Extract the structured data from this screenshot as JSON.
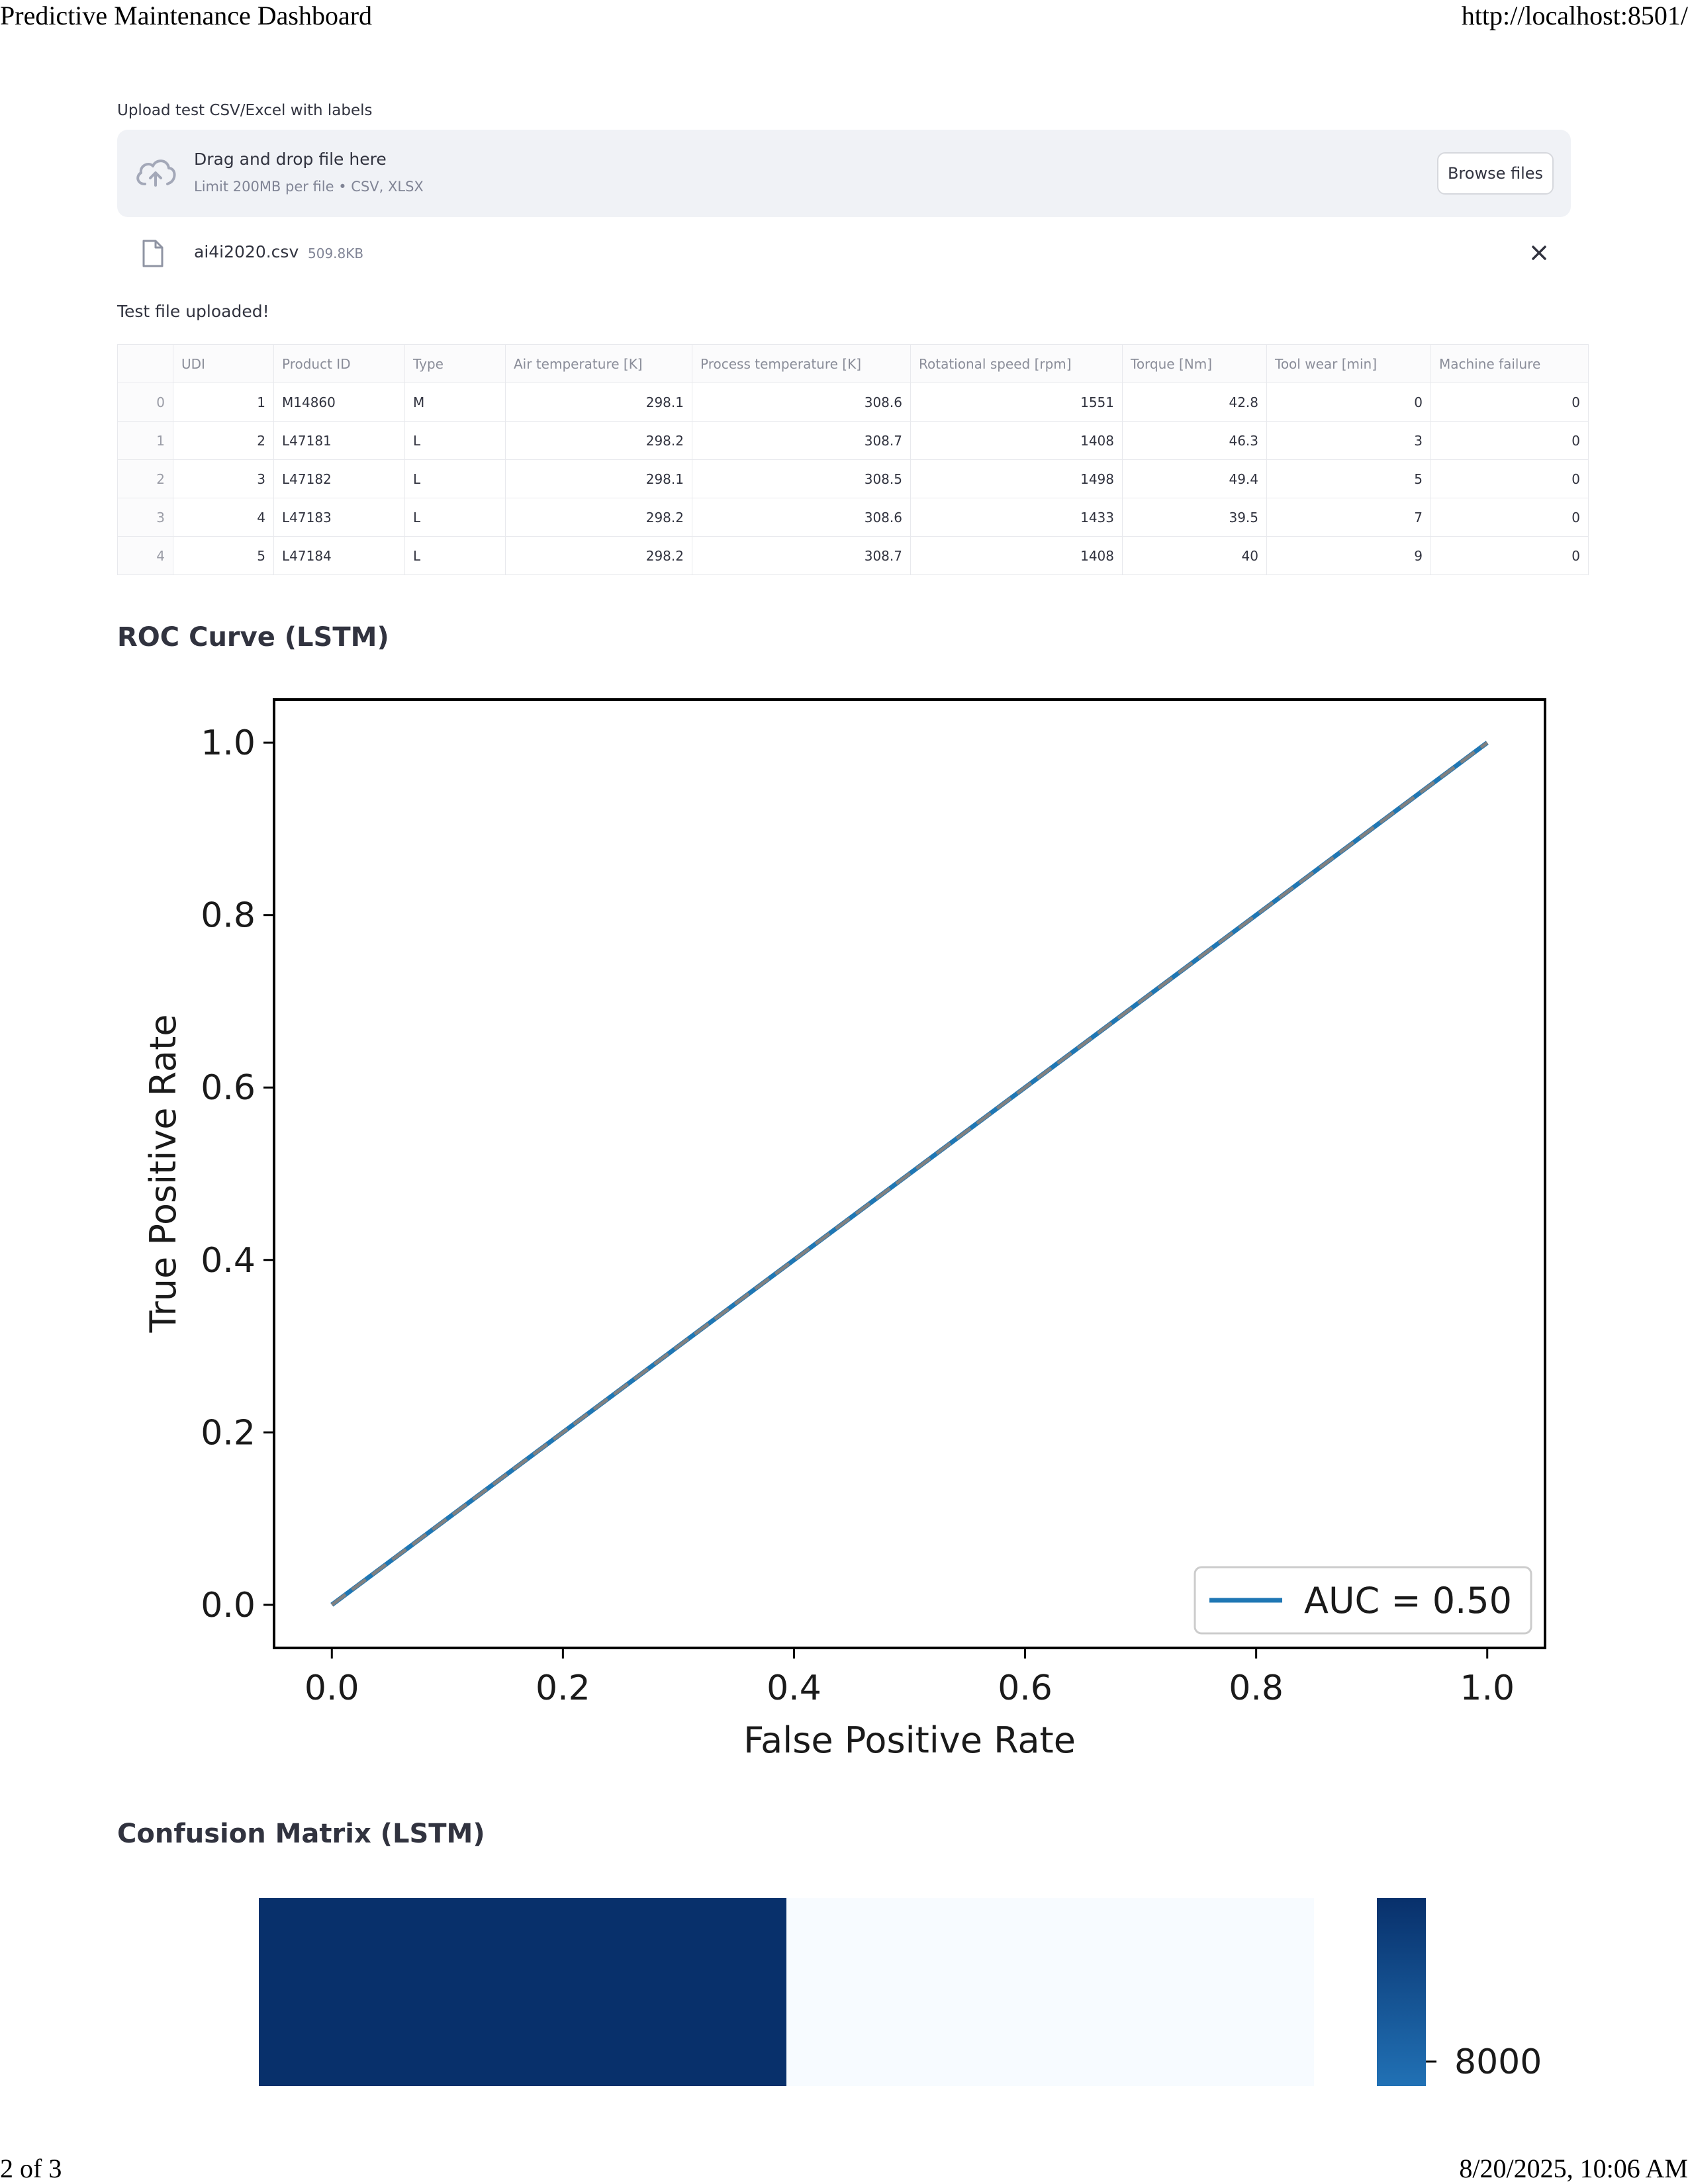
{
  "print_header": {
    "title": "Predictive Maintenance Dashboard",
    "url": "http://localhost:8501/"
  },
  "print_footer": {
    "page": "2 of 3",
    "datetime": "8/20/2025, 10:06 AM"
  },
  "uploader": {
    "label": "Upload test CSV/Excel with labels",
    "drop_text": "Drag and drop file here",
    "limit_text": "Limit 200MB per file • CSV, XLSX",
    "browse_label": "Browse files",
    "icon": "cloud-upload-icon",
    "file": {
      "name": "ai4i2020.csv",
      "size": "509.8KB",
      "icon": "file-icon",
      "remove_icon": "close-icon"
    }
  },
  "status_message": "Test file uploaded!",
  "table": {
    "columns": [
      "",
      "UDI",
      "Product ID",
      "Type",
      "Air temperature [K]",
      "Process temperature [K]",
      "Rotational speed [rpm]",
      "Torque [Nm]",
      "Tool wear [min]",
      "Machine failure"
    ],
    "rows": [
      [
        "0",
        "1",
        "M14860",
        "M",
        "298.1",
        "308.6",
        "1551",
        "42.8",
        "0",
        "0"
      ],
      [
        "1",
        "2",
        "L47181",
        "L",
        "298.2",
        "308.7",
        "1408",
        "46.3",
        "3",
        "0"
      ],
      [
        "2",
        "3",
        "L47182",
        "L",
        "298.1",
        "308.5",
        "1498",
        "49.4",
        "5",
        "0"
      ],
      [
        "3",
        "4",
        "L47183",
        "L",
        "298.2",
        "308.6",
        "1433",
        "39.5",
        "7",
        "0"
      ],
      [
        "4",
        "5",
        "L47184",
        "L",
        "298.2",
        "308.7",
        "1408",
        "40",
        "9",
        "0"
      ]
    ]
  },
  "roc_section": {
    "title": "ROC Curve (LSTM)"
  },
  "cm_section": {
    "title": "Confusion Matrix (LSTM)"
  },
  "chart_data": [
    {
      "type": "line",
      "title": "",
      "xlabel": "False Positive Rate",
      "ylabel": "True Positive Rate",
      "xlim": [
        -0.05,
        1.05
      ],
      "ylim": [
        -0.05,
        1.05
      ],
      "xticks": [
        0.0,
        0.2,
        0.4,
        0.6,
        0.8,
        1.0
      ],
      "yticks": [
        0.0,
        0.2,
        0.4,
        0.6,
        0.8,
        1.0
      ],
      "grid": false,
      "legend_position": "lower-right",
      "series": [
        {
          "name": "AUC = 0.50",
          "x": [
            0.0,
            1.0
          ],
          "y": [
            0.0,
            1.0
          ],
          "color": "#1f77b4",
          "style": "solid"
        },
        {
          "x": [
            0.0,
            1.0
          ],
          "y": [
            0.0,
            1.0
          ],
          "color": "#808080",
          "style": "dashed"
        }
      ]
    },
    {
      "type": "heatmap",
      "title": "",
      "colormap": "Blues",
      "cells": [
        {
          "row": 0,
          "col": 0,
          "color": "#08306b"
        },
        {
          "row": 0,
          "col": 1,
          "color": "#f7fbff"
        }
      ],
      "colorbar_ticks": [
        "8000"
      ]
    }
  ]
}
